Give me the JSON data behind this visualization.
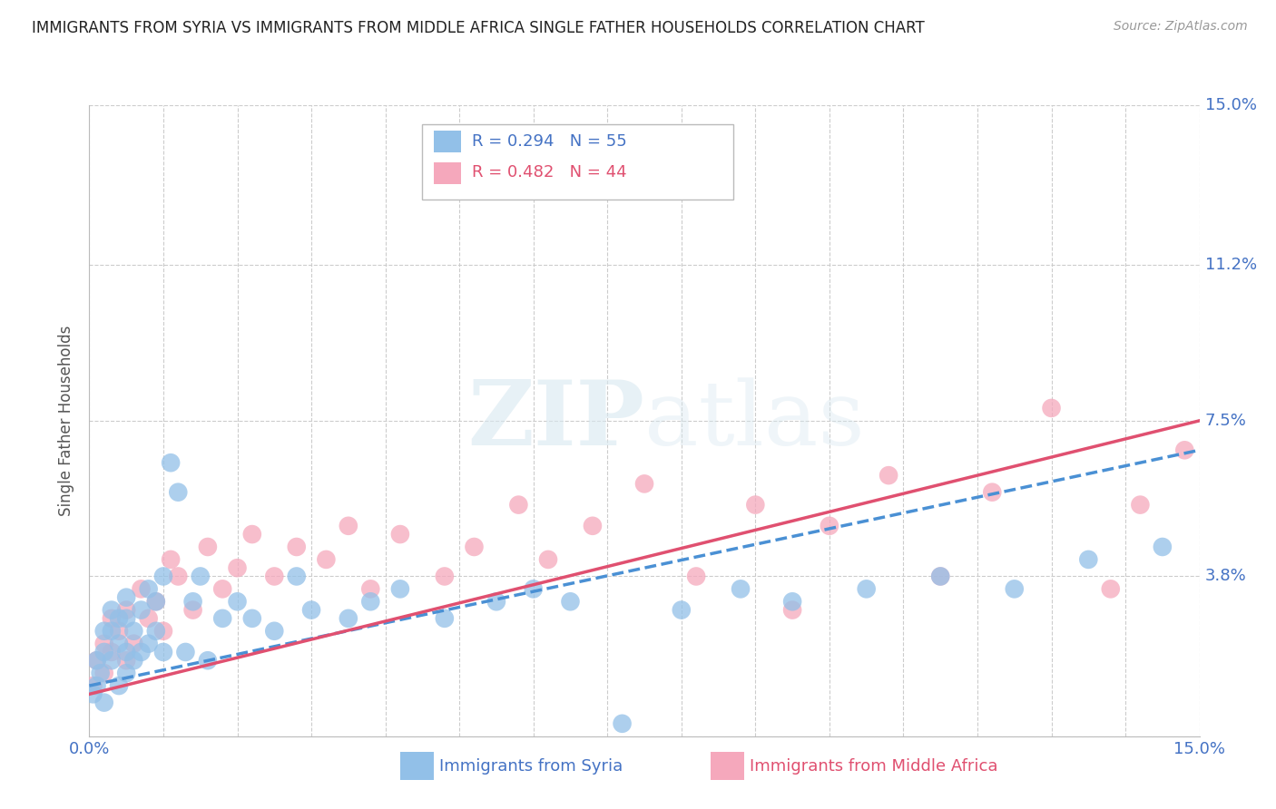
{
  "title": "IMMIGRANTS FROM SYRIA VS IMMIGRANTS FROM MIDDLE AFRICA SINGLE FATHER HOUSEHOLDS CORRELATION CHART",
  "source": "Source: ZipAtlas.com",
  "ylabel": "Single Father Households",
  "R1": "0.294",
  "N1": "55",
  "R2": "0.482",
  "N2": "44",
  "legend_label1": "Immigrants from Syria",
  "legend_label2": "Immigrants from Middle Africa",
  "color1": "#92c0e8",
  "color2": "#f5a8bc",
  "line_color1": "#4a90d4",
  "line_color2": "#e05070",
  "background_color": "#ffffff",
  "grid_color": "#cccccc",
  "xlim": [
    0.0,
    0.15
  ],
  "ylim": [
    0.0,
    0.15
  ],
  "ytick_vals": [
    0.0,
    0.038,
    0.075,
    0.112,
    0.15
  ],
  "ytick_labels": [
    "",
    "3.8%",
    "7.5%",
    "11.2%",
    "15.0%"
  ],
  "syria_x": [
    0.0005,
    0.001,
    0.001,
    0.0015,
    0.002,
    0.002,
    0.002,
    0.003,
    0.003,
    0.003,
    0.004,
    0.004,
    0.004,
    0.005,
    0.005,
    0.005,
    0.005,
    0.006,
    0.006,
    0.007,
    0.007,
    0.008,
    0.008,
    0.009,
    0.009,
    0.01,
    0.01,
    0.011,
    0.012,
    0.013,
    0.014,
    0.015,
    0.016,
    0.018,
    0.02,
    0.022,
    0.025,
    0.028,
    0.03,
    0.035,
    0.038,
    0.042,
    0.048,
    0.055,
    0.06,
    0.065,
    0.072,
    0.08,
    0.088,
    0.095,
    0.105,
    0.115,
    0.125,
    0.135,
    0.145
  ],
  "syria_y": [
    0.01,
    0.012,
    0.018,
    0.015,
    0.02,
    0.025,
    0.008,
    0.018,
    0.025,
    0.03,
    0.012,
    0.022,
    0.028,
    0.015,
    0.02,
    0.028,
    0.033,
    0.018,
    0.025,
    0.02,
    0.03,
    0.022,
    0.035,
    0.025,
    0.032,
    0.02,
    0.038,
    0.065,
    0.058,
    0.02,
    0.032,
    0.038,
    0.018,
    0.028,
    0.032,
    0.028,
    0.025,
    0.038,
    0.03,
    0.028,
    0.032,
    0.035,
    0.028,
    0.032,
    0.035,
    0.032,
    0.003,
    0.03,
    0.035,
    0.032,
    0.035,
    0.038,
    0.035,
    0.042,
    0.045
  ],
  "africa_x": [
    0.0005,
    0.001,
    0.002,
    0.002,
    0.003,
    0.003,
    0.004,
    0.005,
    0.005,
    0.006,
    0.007,
    0.008,
    0.009,
    0.01,
    0.011,
    0.012,
    0.014,
    0.016,
    0.018,
    0.02,
    0.022,
    0.025,
    0.028,
    0.032,
    0.035,
    0.038,
    0.042,
    0.048,
    0.052,
    0.058,
    0.062,
    0.068,
    0.075,
    0.082,
    0.09,
    0.095,
    0.1,
    0.108,
    0.115,
    0.122,
    0.13,
    0.138,
    0.142,
    0.148
  ],
  "africa_y": [
    0.012,
    0.018,
    0.015,
    0.022,
    0.02,
    0.028,
    0.025,
    0.018,
    0.03,
    0.022,
    0.035,
    0.028,
    0.032,
    0.025,
    0.042,
    0.038,
    0.03,
    0.045,
    0.035,
    0.04,
    0.048,
    0.038,
    0.045,
    0.042,
    0.05,
    0.035,
    0.048,
    0.038,
    0.045,
    0.055,
    0.042,
    0.05,
    0.06,
    0.038,
    0.055,
    0.03,
    0.05,
    0.062,
    0.038,
    0.058,
    0.078,
    0.035,
    0.055,
    0.068
  ]
}
